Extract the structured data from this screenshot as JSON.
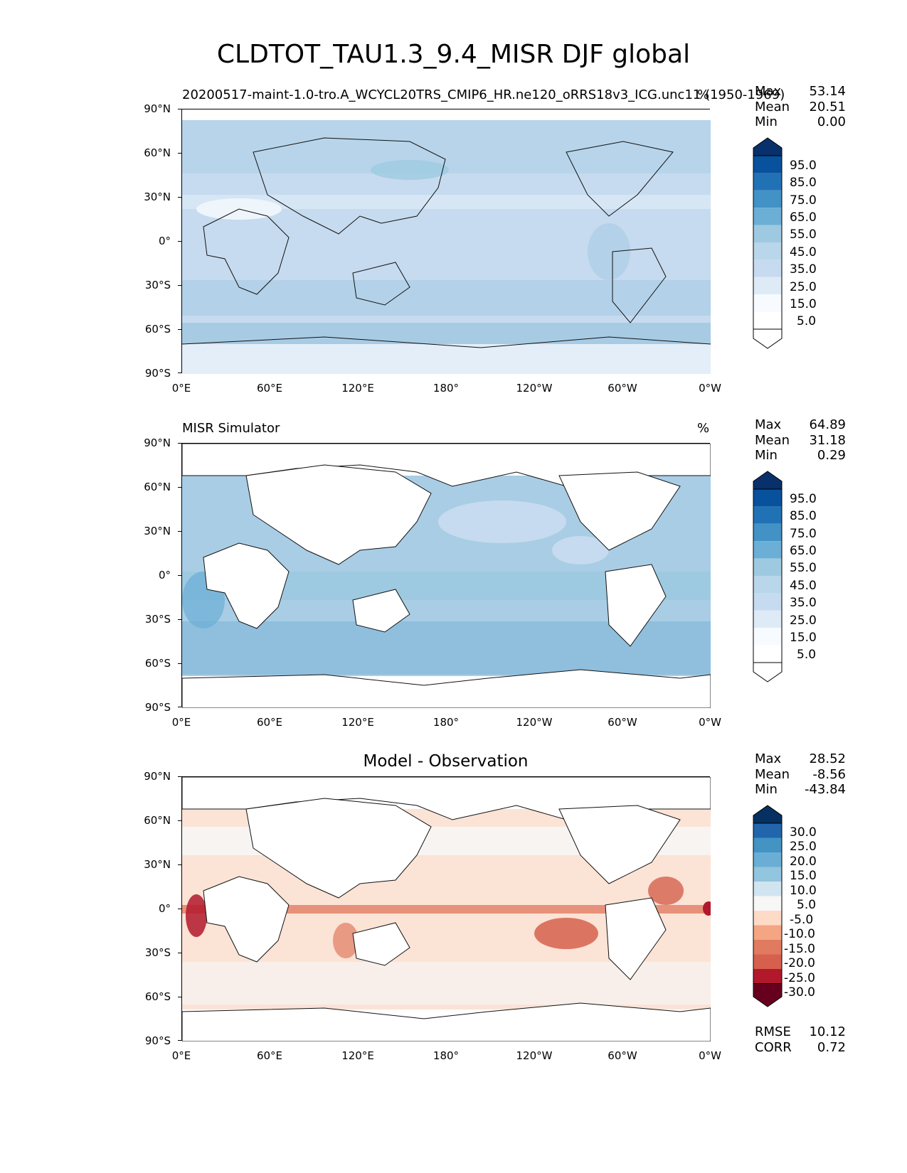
{
  "figure": {
    "title": "CLDTOT_TAU1.3_9.4_MISR DJF global"
  },
  "axes": {
    "lat_labels": [
      "90°N",
      "60°N",
      "30°N",
      "0°",
      "30°S",
      "60°S",
      "90°S"
    ],
    "lon_labels": [
      "0°E",
      "60°E",
      "120°E",
      "180°",
      "120°W",
      "60°W",
      "0°W"
    ]
  },
  "panels": [
    {
      "id": "model",
      "subtitle_left": "20200517-maint-1.0-tro.A_WCYCL20TRS_CMIP6_HR.ne120_oRRS18v3_ICG.unc11 (1950-1969)",
      "subtitle_right": "%",
      "stats": [
        {
          "label": "Max",
          "value": "53.14"
        },
        {
          "label": "Mean",
          "value": "20.51"
        },
        {
          "label": "Min",
          "value": "0.00"
        }
      ],
      "colorbar": {
        "labels": [
          "95.0",
          "85.0",
          "75.0",
          "65.0",
          "55.0",
          "45.0",
          "35.0",
          "25.0",
          "15.0",
          "5.0"
        ],
        "colors": [
          "#08306b",
          "#08519c",
          "#2171b5",
          "#4292c6",
          "#6baed6",
          "#9ecae1",
          "#b9d6ea",
          "#c6dbef",
          "#deebf7",
          "#f7fbff",
          "#ffffff"
        ]
      }
    },
    {
      "id": "obs",
      "subtitle_left": "MISR Simulator",
      "subtitle_right": "%",
      "stats": [
        {
          "label": "Max",
          "value": "64.89"
        },
        {
          "label": "Mean",
          "value": "31.18"
        },
        {
          "label": "Min",
          "value": "0.29"
        }
      ],
      "colorbar": {
        "labels": [
          "95.0",
          "85.0",
          "75.0",
          "65.0",
          "55.0",
          "45.0",
          "35.0",
          "25.0",
          "15.0",
          "5.0"
        ],
        "colors": [
          "#08306b",
          "#08519c",
          "#2171b5",
          "#4292c6",
          "#6baed6",
          "#9ecae1",
          "#b9d6ea",
          "#c6dbef",
          "#deebf7",
          "#f7fbff",
          "#ffffff"
        ]
      }
    },
    {
      "id": "diff",
      "title": "Model - Observation",
      "stats": [
        {
          "label": "Max",
          "value": "28.52"
        },
        {
          "label": "Mean",
          "value": "-8.56"
        },
        {
          "label": "Min",
          "value": "-43.84"
        }
      ],
      "metrics": [
        {
          "label": "RMSE",
          "value": "10.12"
        },
        {
          "label": "CORR",
          "value": "0.72"
        }
      ],
      "colorbar": {
        "labels": [
          "30.0",
          "25.0",
          "20.0",
          "15.0",
          "10.0",
          "5.0",
          "-5.0",
          "-10.0",
          "-15.0",
          "-20.0",
          "-25.0",
          "-30.0"
        ],
        "colors": [
          "#053061",
          "#2166ac",
          "#4393c3",
          "#6aaed6",
          "#92c5de",
          "#d1e5f0",
          "#f7f7f7",
          "#fddbc7",
          "#f4a582",
          "#e07b5f",
          "#d6604d",
          "#b2182b",
          "#67001f"
        ]
      }
    }
  ],
  "colors": {
    "ocean_model": "#c6dbef",
    "ocean_obs": "#9ecae1",
    "land": "#ffffff",
    "diff_background": "#fbe3d6"
  }
}
